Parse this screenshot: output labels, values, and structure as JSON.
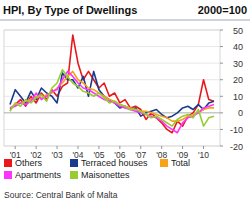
{
  "chart_data": {
    "type": "line",
    "title": "HPI, By Type of Dwellings",
    "subtitle": "2000=100",
    "source": "Source: Central Bank of Malta",
    "categories": [
      null,
      "'01",
      null,
      null,
      null,
      "'02",
      null,
      null,
      null,
      "'03",
      null,
      null,
      null,
      "'04",
      null,
      null,
      null,
      "'05",
      null,
      null,
      null,
      "'06",
      null,
      null,
      null,
      "'07",
      null,
      null,
      null,
      "'08",
      null,
      null,
      null,
      "'09",
      null,
      null,
      null,
      "'10",
      null,
      null
    ],
    "series": [
      {
        "name": "Others",
        "color": "#e8191c",
        "values": [
          2,
          5,
          8,
          4,
          10,
          6,
          12,
          8,
          14,
          10,
          16,
          18,
          47,
          30,
          20,
          25,
          20,
          15,
          18,
          10,
          12,
          6,
          8,
          3,
          4,
          2,
          -4,
          0,
          -3,
          -6,
          -10,
          -12,
          -5,
          -8,
          -2,
          0,
          5,
          20,
          8,
          7
        ]
      },
      {
        "name": "Terraced houses",
        "color": "#1a3c8c",
        "values": [
          5,
          14,
          10,
          6,
          13,
          8,
          15,
          12,
          10,
          6,
          24,
          20,
          20,
          15,
          22,
          10,
          25,
          14,
          10,
          8,
          6,
          3,
          4,
          2,
          3,
          -2,
          0,
          1,
          2,
          -1,
          -3,
          -2,
          0,
          3,
          4,
          2,
          5,
          2,
          6,
          7
        ]
      },
      {
        "name": "Total",
        "color": "#f7a21b",
        "values": [
          3,
          5,
          6,
          7,
          8,
          10,
          9,
          11,
          12,
          15,
          18,
          22,
          25,
          20,
          18,
          15,
          14,
          12,
          10,
          8,
          7,
          5,
          4,
          3,
          2,
          1,
          1,
          0,
          -1,
          -2,
          -3,
          -5,
          -5,
          -4,
          -2,
          -1,
          0,
          2,
          3,
          3
        ]
      },
      {
        "name": "Apartments",
        "color": "#ff33ff",
        "values": [
          3,
          4,
          6,
          5,
          7,
          12,
          8,
          10,
          13,
          14,
          20,
          25,
          22,
          18,
          15,
          14,
          12,
          10,
          8,
          7,
          6,
          4,
          3,
          2,
          1,
          0,
          -1,
          -2,
          -3,
          -5,
          -8,
          -10,
          -12,
          -6,
          -3,
          -2,
          0,
          3,
          4,
          5
        ]
      },
      {
        "name": "Maisonettes",
        "color": "#99cc33",
        "values": [
          1,
          6,
          4,
          8,
          6,
          9,
          11,
          7,
          15,
          18,
          26,
          22,
          18,
          16,
          13,
          12,
          10,
          12,
          9,
          6,
          7,
          5,
          4,
          2,
          2,
          1,
          -1,
          -3,
          -2,
          -4,
          -6,
          -8,
          -4,
          -2,
          -1,
          -3,
          2,
          -8,
          -3,
          -2
        ]
      }
    ],
    "ylim": [
      -20,
      50
    ],
    "yticks": [
      -20,
      -10,
      0,
      10,
      20,
      30,
      40,
      50
    ],
    "grid": true,
    "legend": "bottom"
  }
}
